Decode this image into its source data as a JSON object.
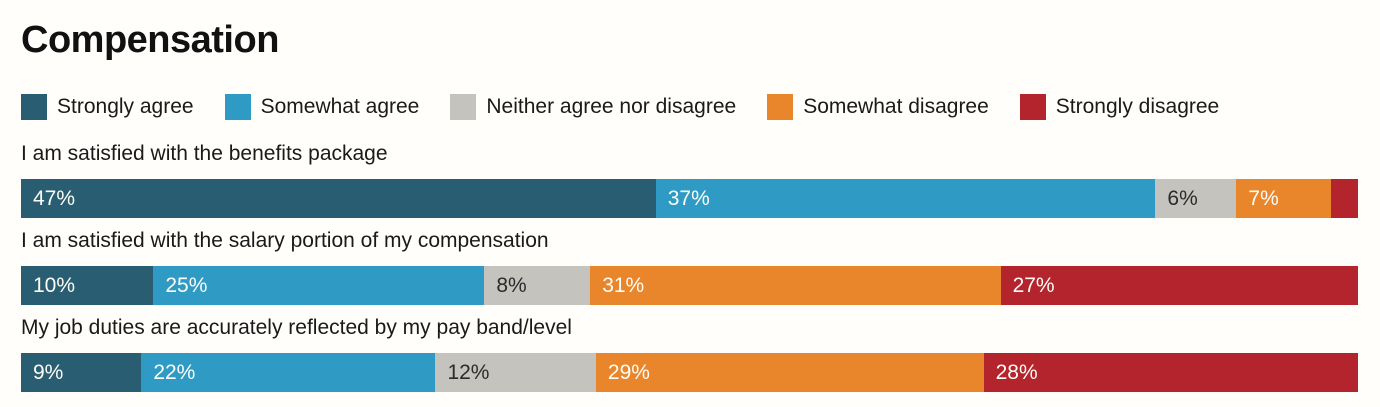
{
  "page": {
    "background": "#fffefb"
  },
  "chart_data": {
    "type": "bar",
    "orientation": "horizontal",
    "stacked": true,
    "value_format": "percent",
    "title": "Compensation",
    "legend_position": "top",
    "grid": false,
    "legend": [
      {
        "name": "Strongly agree",
        "color": "#295e72",
        "label_color": "#fdfdf8"
      },
      {
        "name": "Somewhat agree",
        "color": "#2f9bc4",
        "label_color": "#fdfdf8"
      },
      {
        "name": "Neither agree nor disagree",
        "color": "#c4c3be",
        "label_color": "#2b2b2b"
      },
      {
        "name": "Somewhat disagree",
        "color": "#e9862c",
        "label_color": "#fdfdf8"
      },
      {
        "name": "Strongly disagree",
        "color": "#b3242c",
        "label_color": "#fdfdf8"
      }
    ],
    "rows": [
      {
        "category": "I am satisfied with the benefits package",
        "values": [
          47,
          37,
          6,
          7,
          2
        ],
        "data_labels": [
          "47%",
          "37%",
          "6%",
          "7%",
          ""
        ]
      },
      {
        "category": "I am satisfied with the salary portion of my compensation",
        "values": [
          10,
          25,
          8,
          31,
          27
        ],
        "data_labels": [
          "10%",
          "25%",
          "8%",
          "31%",
          "27%"
        ]
      },
      {
        "category": "My job duties are accurately reflected by my pay band/level",
        "values": [
          9,
          22,
          12,
          29,
          28
        ],
        "data_labels": [
          "9%",
          "22%",
          "12%",
          "29%",
          "28%"
        ]
      }
    ]
  }
}
